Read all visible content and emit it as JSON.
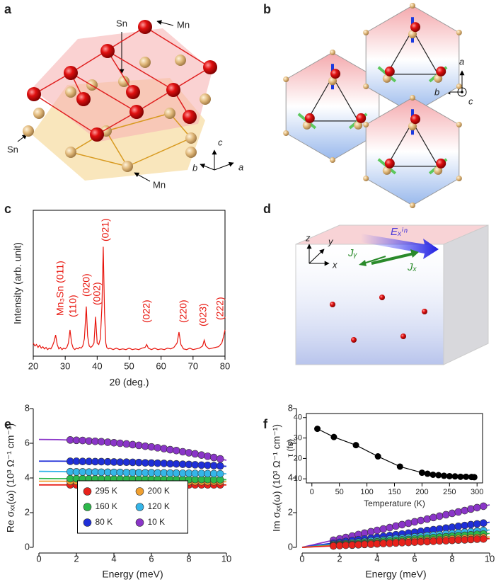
{
  "panel_labels": [
    "a",
    "b",
    "c",
    "d",
    "e",
    "f"
  ],
  "diagrams": {
    "a": {
      "labels": [
        "Sn",
        "Mn",
        "Sn",
        "Mn"
      ],
      "axes": [
        "c",
        "b",
        "a"
      ]
    },
    "b": {
      "axes": [
        "a",
        "b",
        "c"
      ]
    },
    "d": {
      "axes": [
        "z",
        "y",
        "x"
      ],
      "field": "Eₓⁱⁿ",
      "currents": [
        "Jᵧ",
        "Jₓ"
      ]
    }
  },
  "chart_data": [
    {
      "type": "line",
      "ylabel": "Intensity (arb. unit)",
      "xlabel": "2θ (deg.)",
      "color": "#e8140c",
      "xlim": [
        20,
        80
      ],
      "ylim": [
        0,
        10
      ],
      "xticks": [
        20,
        30,
        40,
        50,
        60,
        70,
        80
      ],
      "annotations": [
        "Mn₃Sn (011)",
        "(110)",
        "(020)",
        "(002)",
        "(021)",
        "(022)",
        "(220)",
        "(023)",
        "(222)"
      ],
      "x": [
        20,
        20.5,
        21,
        21.5,
        22,
        22.5,
        23,
        23.5,
        24,
        24.5,
        25,
        25.5,
        26,
        26.5,
        27,
        27.5,
        28,
        28.5,
        29,
        29.5,
        30,
        30.5,
        31,
        31.5,
        32,
        32.5,
        33,
        33.5,
        34,
        34.5,
        35,
        35.5,
        36,
        36.6,
        37,
        37.5,
        38,
        38.5,
        39,
        39.5,
        40,
        40.5,
        41,
        41.5,
        41.9,
        42.3,
        42.7,
        43,
        43.5,
        44,
        45,
        46,
        47,
        48,
        49,
        50,
        51,
        52,
        53,
        54,
        55,
        55.5,
        56,
        57,
        58,
        59,
        60,
        61,
        62,
        63,
        64,
        65,
        65.6,
        66.2,
        67,
        68,
        69,
        70,
        71,
        72,
        73,
        73.5,
        74,
        75,
        76,
        77,
        78,
        79,
        79.5,
        80
      ],
      "values": [
        0.9,
        0.7,
        0.8,
        0.6,
        0.75,
        0.55,
        0.65,
        0.5,
        0.6,
        0.45,
        0.55,
        0.5,
        0.7,
        1.0,
        1.45,
        0.8,
        0.5,
        0.6,
        0.45,
        0.55,
        0.5,
        0.6,
        0.9,
        1.8,
        0.9,
        0.55,
        0.45,
        0.55,
        0.5,
        0.6,
        0.55,
        0.7,
        1.2,
        3.4,
        1.4,
        0.7,
        0.6,
        0.7,
        0.9,
        2.7,
        0.9,
        0.8,
        1.2,
        3.5,
        7.5,
        3.0,
        0.9,
        0.6,
        0.5,
        0.55,
        0.45,
        0.55,
        0.45,
        0.5,
        0.45,
        0.55,
        0.45,
        0.5,
        0.45,
        0.55,
        0.6,
        0.8,
        0.55,
        0.45,
        0.55,
        0.45,
        0.5,
        0.45,
        0.55,
        0.5,
        0.6,
        0.9,
        1.65,
        0.8,
        0.5,
        0.45,
        0.55,
        0.45,
        0.5,
        0.55,
        0.7,
        1.1,
        0.7,
        0.5,
        0.55,
        0.6,
        0.65,
        0.9,
        1.3,
        1.8
      ]
    },
    {
      "type": "scatter",
      "ylabel": "Re σₓₓ(ω) (10³ Ω⁻¹ cm⁻¹)",
      "xlabel": "Energy (meV)",
      "xlim": [
        0,
        10
      ],
      "ylim": [
        0,
        8
      ],
      "xticks": [
        0,
        2,
        4,
        6,
        8,
        10
      ],
      "yticks": [
        0,
        2,
        4,
        6,
        8
      ],
      "legend": "bottom-center",
      "x": [
        1.67,
        2.0,
        2.33,
        2.67,
        3.0,
        3.33,
        3.67,
        4.0,
        4.33,
        4.67,
        5.0,
        5.33,
        5.67,
        6.0,
        6.33,
        6.67,
        7.0,
        7.33,
        7.67,
        8.0,
        8.33,
        8.67,
        9.0,
        9.33,
        9.67
      ],
      "fit_x": [
        0,
        1,
        2,
        3,
        4,
        5,
        6,
        7,
        8,
        9,
        10
      ],
      "series": [
        {
          "name": "295 K",
          "color": "#e8221b",
          "values": [
            3.6,
            3.6,
            3.6,
            3.6,
            3.6,
            3.6,
            3.6,
            3.6,
            3.6,
            3.6,
            3.6,
            3.6,
            3.6,
            3.6,
            3.6,
            3.6,
            3.6,
            3.6,
            3.6,
            3.6,
            3.6,
            3.6,
            3.6,
            3.6,
            3.6
          ],
          "fit_values": [
            3.6,
            3.6,
            3.6,
            3.6,
            3.6,
            3.6,
            3.6,
            3.6,
            3.6,
            3.6,
            3.6
          ]
        },
        {
          "name": "200 K",
          "color": "#f0a030",
          "values": [
            3.81,
            3.81,
            3.81,
            3.81,
            3.81,
            3.81,
            3.81,
            3.81,
            3.8,
            3.8,
            3.8,
            3.8,
            3.8,
            3.8,
            3.8,
            3.8,
            3.8,
            3.79,
            3.79,
            3.79,
            3.79,
            3.79,
            3.79,
            3.79,
            3.79
          ],
          "fit_values": [
            3.81,
            3.81,
            3.8,
            3.8,
            3.8,
            3.8,
            3.79,
            3.79,
            3.79,
            3.78,
            3.78
          ]
        },
        {
          "name": "160 K",
          "color": "#2cb84a",
          "values": [
            3.96,
            3.96,
            3.96,
            3.95,
            3.95,
            3.95,
            3.95,
            3.94,
            3.94,
            3.94,
            3.94,
            3.93,
            3.93,
            3.93,
            3.93,
            3.92,
            3.92,
            3.92,
            3.92,
            3.91,
            3.91,
            3.91,
            3.91,
            3.9,
            3.9
          ],
          "fit_values": [
            3.97,
            3.96,
            3.96,
            3.95,
            3.94,
            3.94,
            3.93,
            3.92,
            3.92,
            3.91,
            3.9
          ]
        },
        {
          "name": "120 K",
          "color": "#35b5e8",
          "values": [
            4.36,
            4.35,
            4.35,
            4.34,
            4.34,
            4.33,
            4.33,
            4.32,
            4.32,
            4.31,
            4.31,
            4.3,
            4.3,
            4.3,
            4.29,
            4.29,
            4.28,
            4.28,
            4.27,
            4.27,
            4.26,
            4.26,
            4.25,
            4.25,
            4.24
          ],
          "fit_values": [
            4.38,
            4.37,
            4.35,
            4.34,
            4.32,
            4.31,
            4.3,
            4.28,
            4.27,
            4.25,
            4.24
          ]
        },
        {
          "name": "80 K",
          "color": "#1f2fd8",
          "values": [
            4.96,
            4.96,
            4.95,
            4.95,
            4.94,
            4.94,
            4.93,
            4.92,
            4.91,
            4.91,
            4.9,
            4.89,
            4.87,
            4.86,
            4.85,
            4.84,
            4.82,
            4.81,
            4.79,
            4.78,
            4.76,
            4.74,
            4.73,
            4.71,
            4.69
          ],
          "fit_values": [
            4.97,
            4.97,
            4.96,
            4.94,
            4.92,
            4.9,
            4.86,
            4.82,
            4.78,
            4.73,
            4.67
          ]
        },
        {
          "name": "10 K",
          "color": "#8a35c8",
          "values": [
            6.19,
            6.17,
            6.16,
            6.13,
            6.11,
            6.09,
            6.06,
            6.03,
            6.0,
            5.96,
            5.92,
            5.88,
            5.83,
            5.79,
            5.74,
            5.69,
            5.63,
            5.58,
            5.51,
            5.45,
            5.39,
            5.32,
            5.25,
            5.18,
            5.1
          ],
          "fit_values": [
            6.22,
            6.21,
            6.17,
            6.11,
            6.03,
            5.92,
            5.79,
            5.63,
            5.45,
            5.25,
            5.02
          ]
        }
      ]
    },
    {
      "type": "scatter",
      "ylabel": "Im σₓₓ(ω) (10³ Ω⁻¹ cm⁻¹)",
      "xlabel": "Energy (meV)",
      "xlim": [
        0,
        10
      ],
      "ylim": [
        0,
        8
      ],
      "xticks": [
        0,
        2,
        4,
        6,
        8,
        10
      ],
      "yticks": [
        0,
        2,
        4,
        6,
        8
      ],
      "x": [
        1.67,
        2.0,
        2.33,
        2.67,
        3.0,
        3.33,
        3.67,
        4.0,
        4.33,
        4.67,
        5.0,
        5.33,
        5.67,
        6.0,
        6.33,
        6.67,
        7.0,
        7.33,
        7.67,
        8.0,
        8.33,
        8.67,
        9.0,
        9.33,
        9.67
      ],
      "fit_x": [
        0,
        1,
        2,
        3,
        4,
        5,
        6,
        7,
        8,
        9,
        10
      ],
      "series": [
        {
          "color": "#8a35c8",
          "values": [
            0.41,
            0.49,
            0.57,
            0.65,
            0.74,
            0.82,
            0.9,
            0.98,
            1.06,
            1.14,
            1.23,
            1.31,
            1.39,
            1.47,
            1.55,
            1.63,
            1.72,
            1.8,
            1.88,
            1.96,
            2.04,
            2.12,
            2.21,
            2.29,
            2.37
          ],
          "fit_values": [
            0,
            0.25,
            0.49,
            0.74,
            0.98,
            1.23,
            1.47,
            1.72,
            1.96,
            2.21,
            2.45
          ]
        },
        {
          "color": "#1f2fd8",
          "values": [
            0.24,
            0.29,
            0.34,
            0.39,
            0.44,
            0.48,
            0.53,
            0.58,
            0.63,
            0.68,
            0.73,
            0.77,
            0.82,
            0.87,
            0.92,
            0.97,
            1.02,
            1.06,
            1.11,
            1.16,
            1.21,
            1.26,
            1.31,
            1.35,
            1.4
          ],
          "fit_values": [
            0,
            0.15,
            0.29,
            0.44,
            0.58,
            0.73,
            0.87,
            1.02,
            1.16,
            1.31,
            1.45
          ]
        },
        {
          "color": "#35b5e8",
          "values": [
            0.17,
            0.2,
            0.23,
            0.27,
            0.3,
            0.33,
            0.37,
            0.4,
            0.43,
            0.47,
            0.5,
            0.53,
            0.57,
            0.6,
            0.63,
            0.67,
            0.7,
            0.73,
            0.77,
            0.8,
            0.83,
            0.87,
            0.9,
            0.93,
            0.97
          ],
          "fit_values": [
            0,
            0.1,
            0.2,
            0.3,
            0.4,
            0.5,
            0.6,
            0.7,
            0.8,
            0.9,
            1.0
          ]
        },
        {
          "color": "#2cb84a",
          "values": [
            0.13,
            0.16,
            0.19,
            0.21,
            0.24,
            0.27,
            0.29,
            0.32,
            0.35,
            0.37,
            0.4,
            0.43,
            0.45,
            0.48,
            0.51,
            0.53,
            0.56,
            0.59,
            0.61,
            0.64,
            0.67,
            0.69,
            0.72,
            0.75,
            0.77
          ],
          "fit_values": [
            0,
            0.08,
            0.16,
            0.24,
            0.32,
            0.4,
            0.48,
            0.56,
            0.64,
            0.72,
            0.8
          ]
        },
        {
          "color": "#f0a030",
          "values": [
            0.1,
            0.12,
            0.14,
            0.16,
            0.18,
            0.2,
            0.22,
            0.24,
            0.26,
            0.28,
            0.3,
            0.32,
            0.34,
            0.36,
            0.38,
            0.4,
            0.42,
            0.44,
            0.46,
            0.48,
            0.5,
            0.52,
            0.54,
            0.56,
            0.58
          ],
          "fit_values": [
            0,
            0.06,
            0.12,
            0.18,
            0.24,
            0.3,
            0.36,
            0.42,
            0.48,
            0.54,
            0.6
          ]
        },
        {
          "color": "#e8221b",
          "values": [
            0.08,
            0.1,
            0.12,
            0.13,
            0.15,
            0.17,
            0.18,
            0.2,
            0.22,
            0.23,
            0.25,
            0.27,
            0.28,
            0.3,
            0.32,
            0.33,
            0.35,
            0.37,
            0.38,
            0.4,
            0.42,
            0.43,
            0.45,
            0.47,
            0.48
          ],
          "fit_values": [
            0,
            0.05,
            0.1,
            0.15,
            0.2,
            0.25,
            0.3,
            0.35,
            0.4,
            0.45,
            0.5
          ]
        }
      ]
    },
    {
      "type": "line",
      "markers": true,
      "ylabel": "τ (fs)",
      "xlabel": "Temperature (K)",
      "color": "#000000",
      "xlim": [
        -10,
        310
      ],
      "ylim": [
        8,
        42
      ],
      "xticks": [
        0,
        50,
        100,
        150,
        200,
        250,
        300
      ],
      "yticks": [
        10,
        20,
        30,
        40
      ],
      "x": [
        10,
        40,
        80,
        120,
        160,
        200,
        210,
        220,
        230,
        240,
        250,
        260,
        270,
        280,
        290,
        295
      ],
      "values": [
        34.5,
        30.5,
        26.5,
        21,
        16,
        13,
        12.5,
        12,
        11.8,
        11.5,
        11.3,
        11.2,
        11,
        11,
        10.9,
        10.8
      ]
    }
  ]
}
